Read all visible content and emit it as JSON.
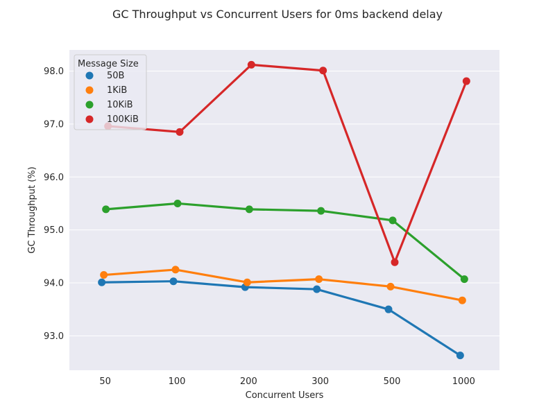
{
  "chart_data": {
    "type": "line",
    "title": "GC Throughput vs Concurrent Users for 0ms backend delay",
    "xlabel": "Concurrent Users",
    "ylabel": "GC Throughput (%)",
    "categories": [
      "50",
      "100",
      "200",
      "300",
      "500",
      "1000"
    ],
    "yticks": [
      "93.0",
      "94.0",
      "95.0",
      "96.0",
      "97.0",
      "98.0"
    ],
    "ylim": [
      92.35,
      98.4
    ],
    "grid": true,
    "legend": {
      "title": "Message Size",
      "placement": "top-left"
    },
    "series": [
      {
        "name": "50B",
        "color": "#1f77b4",
        "values": [
          94.01,
          94.03,
          93.92,
          93.88,
          93.5,
          92.63
        ]
      },
      {
        "name": "1KiB",
        "color": "#ff7f0e",
        "values": [
          94.15,
          94.25,
          94.01,
          94.07,
          93.93,
          93.67
        ]
      },
      {
        "name": "10KiB",
        "color": "#2ca02c",
        "values": [
          95.39,
          95.5,
          95.39,
          95.36,
          95.18,
          94.07
        ]
      },
      {
        "name": "100KiB",
        "color": "#d62728",
        "values": [
          96.96,
          96.85,
          98.12,
          98.01,
          94.39,
          97.81
        ]
      }
    ]
  }
}
